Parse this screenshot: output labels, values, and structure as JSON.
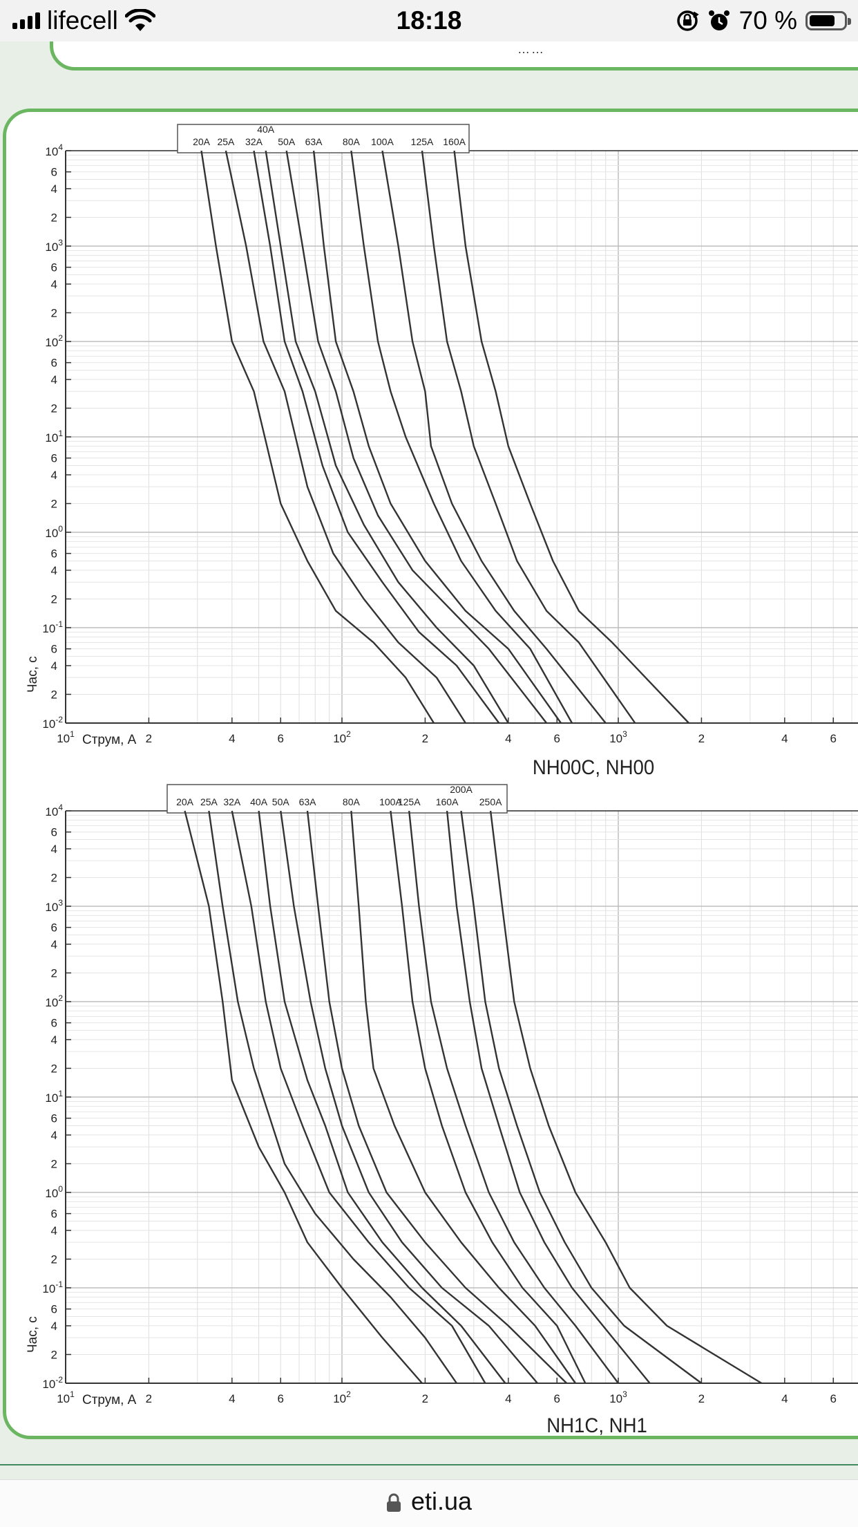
{
  "status_bar": {
    "carrier": "lifecell",
    "time": "18:18",
    "battery_percent": "70 %",
    "battery_level": 0.7,
    "icons": [
      "signal-icon",
      "wifi-icon",
      "rotation-lock-icon",
      "alarm-icon",
      "battery-icon"
    ]
  },
  "prev_card": {
    "stub_text": "……"
  },
  "charts": [
    {
      "caption": "NH00C, NH00",
      "ylabel": "Час, с",
      "xlabel": "Струм, А",
      "x_scale": "log",
      "y_scale": "log",
      "xlim": [
        10,
        7000
      ],
      "ylim": [
        0.01,
        10000
      ],
      "x_ticks": [
        "10 1",
        "2",
        "4",
        "6",
        "10 2",
        "2",
        "4",
        "6",
        "10 3",
        "2",
        "4",
        "6"
      ],
      "y_ticks": [
        "10 4",
        "6",
        "4",
        "2",
        "10 3",
        "6",
        "4",
        "2",
        "10 2",
        "6",
        "4",
        "2",
        "10 1",
        "6",
        "4",
        "2",
        "10 0",
        "6",
        "4",
        "2",
        "10 -1",
        "6",
        "4",
        "2",
        "10 -2"
      ],
      "legend": [
        "20A",
        "25A",
        "32A",
        "40A",
        "50A",
        "63A",
        "80A",
        "100A",
        "125A",
        "160A"
      ],
      "series": [
        {
          "name": "20A",
          "x": [
            31,
            35,
            40,
            48,
            60,
            75,
            95,
            130,
            170,
            215
          ],
          "y": [
            10000,
            1000,
            100,
            30,
            2,
            0.5,
            0.15,
            0.07,
            0.03,
            0.01
          ]
        },
        {
          "name": "25A",
          "x": [
            38,
            45,
            52,
            62,
            75,
            93,
            120,
            160,
            220,
            280
          ],
          "y": [
            10000,
            1000,
            100,
            30,
            3,
            0.6,
            0.2,
            0.07,
            0.03,
            0.01
          ]
        },
        {
          "name": "32A",
          "x": [
            48,
            55,
            62,
            72,
            85,
            105,
            140,
            190,
            260,
            370
          ],
          "y": [
            10000,
            1000,
            100,
            30,
            5,
            1,
            0.3,
            0.09,
            0.04,
            0.01
          ]
        },
        {
          "name": "40A",
          "x": [
            53,
            60,
            68,
            80,
            95,
            120,
            160,
            220,
            300,
            400
          ],
          "y": [
            10000,
            1000,
            100,
            30,
            5,
            1.2,
            0.3,
            0.1,
            0.04,
            0.01
          ]
        },
        {
          "name": "50A",
          "x": [
            63,
            72,
            82,
            95,
            110,
            135,
            180,
            250,
            340,
            550
          ],
          "y": [
            10000,
            1000,
            100,
            30,
            6,
            1.5,
            0.4,
            0.15,
            0.06,
            0.01
          ]
        },
        {
          "name": "63A",
          "x": [
            79,
            86,
            95,
            110,
            125,
            150,
            200,
            280,
            400,
            620
          ],
          "y": [
            10000,
            1000,
            100,
            30,
            8,
            2,
            0.5,
            0.15,
            0.06,
            0.01
          ]
        },
        {
          "name": "80A",
          "x": [
            108,
            120,
            135,
            150,
            170,
            215,
            270,
            360,
            480,
            680
          ],
          "y": [
            10000,
            1000,
            100,
            30,
            10,
            2,
            0.5,
            0.15,
            0.06,
            0.01
          ]
        },
        {
          "name": "100A",
          "x": [
            140,
            160,
            180,
            200,
            210,
            250,
            320,
            420,
            550,
            900
          ],
          "y": [
            10000,
            1000,
            100,
            30,
            8,
            2,
            0.5,
            0.15,
            0.06,
            0.01
          ]
        },
        {
          "name": "125A",
          "x": [
            195,
            215,
            240,
            270,
            300,
            360,
            430,
            550,
            720,
            1150
          ],
          "y": [
            10000,
            1000,
            100,
            30,
            8,
            2,
            0.5,
            0.15,
            0.07,
            0.01
          ]
        },
        {
          "name": "160A",
          "x": [
            255,
            280,
            320,
            360,
            400,
            480,
            580,
            720,
            950,
            1800
          ],
          "y": [
            10000,
            1000,
            100,
            30,
            8,
            2,
            0.5,
            0.15,
            0.07,
            0.01
          ]
        }
      ]
    },
    {
      "caption": "NH1C, NH1",
      "ylabel": "Час, с",
      "xlabel": "Струм, А",
      "x_scale": "log",
      "y_scale": "log",
      "xlim": [
        10,
        7000
      ],
      "ylim": [
        0.01,
        10000
      ],
      "x_ticks": [
        "10 1",
        "2",
        "4",
        "6",
        "10 2",
        "2",
        "4",
        "6",
        "10 3",
        "2",
        "4",
        "6"
      ],
      "y_ticks": [
        "10 4",
        "6",
        "4",
        "2",
        "10 3",
        "6",
        "4",
        "2",
        "10 2",
        "6",
        "4",
        "2",
        "10 1",
        "6",
        "4",
        "2",
        "10 0",
        "6",
        "4",
        "2",
        "10 -1",
        "6",
        "4",
        "2",
        "10 -2"
      ],
      "legend": [
        "20A",
        "25A",
        "32A",
        "40A",
        "50A",
        "63A",
        "80A",
        "100A",
        "125A",
        "160A",
        "200A",
        "250A"
      ],
      "series": [
        {
          "name": "20A",
          "x": [
            27,
            33,
            37,
            40,
            50,
            62,
            75,
            100,
            140,
            195
          ],
          "y": [
            10000,
            1000,
            100,
            15,
            3,
            1,
            0.3,
            0.1,
            0.03,
            0.01
          ]
        },
        {
          "name": "25A",
          "x": [
            33,
            37,
            42,
            48,
            62,
            80,
            110,
            150,
            200,
            260
          ],
          "y": [
            10000,
            1000,
            100,
            20,
            2,
            0.6,
            0.2,
            0.08,
            0.03,
            0.01
          ]
        },
        {
          "name": "32A",
          "x": [
            40,
            47,
            53,
            60,
            72,
            90,
            125,
            175,
            250,
            330
          ],
          "y": [
            10000,
            1000,
            100,
            20,
            5,
            1,
            0.3,
            0.1,
            0.04,
            0.01
          ]
        },
        {
          "name": "40A",
          "x": [
            50,
            55,
            62,
            75,
            87,
            105,
            140,
            195,
            270,
            390
          ],
          "y": [
            10000,
            1000,
            100,
            15,
            5,
            1,
            0.3,
            0.1,
            0.04,
            0.01
          ]
        },
        {
          "name": "50A",
          "x": [
            60,
            67,
            77,
            87,
            100,
            125,
            165,
            230,
            340,
            510
          ],
          "y": [
            10000,
            1000,
            100,
            20,
            5,
            1,
            0.3,
            0.1,
            0.04,
            0.01
          ]
        },
        {
          "name": "63A",
          "x": [
            75,
            82,
            90,
            100,
            115,
            145,
            200,
            280,
            400,
            650
          ],
          "y": [
            10000,
            1000,
            100,
            20,
            5,
            1,
            0.3,
            0.1,
            0.04,
            0.01
          ]
        },
        {
          "name": "80A",
          "x": [
            108,
            115,
            122,
            130,
            155,
            200,
            270,
            370,
            500,
            700
          ],
          "y": [
            10000,
            1000,
            100,
            20,
            5,
            1,
            0.3,
            0.1,
            0.04,
            0.01
          ]
        },
        {
          "name": "100A",
          "x": [
            150,
            165,
            180,
            200,
            230,
            280,
            350,
            450,
            600,
            760
          ],
          "y": [
            10000,
            1000,
            100,
            20,
            5,
            1,
            0.3,
            0.1,
            0.04,
            0.01
          ]
        },
        {
          "name": "125A",
          "x": [
            175,
            190,
            210,
            240,
            280,
            340,
            420,
            540,
            700,
            1000
          ],
          "y": [
            10000,
            1000,
            100,
            20,
            5,
            1,
            0.3,
            0.1,
            0.04,
            0.01
          ]
        },
        {
          "name": "160A",
          "x": [
            240,
            260,
            290,
            320,
            370,
            440,
            540,
            680,
            880,
            1300
          ],
          "y": [
            10000,
            1000,
            100,
            20,
            5,
            1,
            0.3,
            0.1,
            0.04,
            0.01
          ]
        },
        {
          "name": "200A",
          "x": [
            270,
            300,
            330,
            370,
            430,
            520,
            640,
            800,
            1050,
            2000
          ],
          "y": [
            10000,
            1000,
            100,
            20,
            5,
            1,
            0.3,
            0.1,
            0.04,
            0.01
          ]
        },
        {
          "name": "250A",
          "x": [
            345,
            380,
            420,
            480,
            560,
            700,
            900,
            1100,
            1500,
            3300
          ],
          "y": [
            10000,
            1000,
            100,
            20,
            5,
            1,
            0.3,
            0.1,
            0.04,
            0.01
          ]
        }
      ]
    }
  ],
  "browser": {
    "url": "eti.ua"
  }
}
